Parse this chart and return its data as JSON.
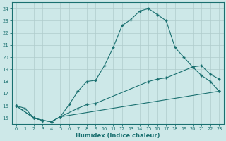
{
  "xlabel": "Humidex (Indice chaleur)",
  "bg_color": "#cde8e8",
  "grid_color": "#b0cccc",
  "line_color": "#1a7070",
  "xlim": [
    -0.5,
    23.5
  ],
  "ylim": [
    14.5,
    24.5
  ],
  "xticks": [
    0,
    1,
    2,
    3,
    4,
    5,
    6,
    7,
    8,
    9,
    10,
    11,
    12,
    13,
    14,
    15,
    16,
    17,
    18,
    19,
    20,
    21,
    22,
    23
  ],
  "yticks": [
    15,
    16,
    17,
    18,
    19,
    20,
    21,
    22,
    23,
    24
  ],
  "line1_x": [
    0,
    1,
    2,
    3,
    4,
    5,
    6,
    7,
    8,
    9,
    10,
    11,
    12,
    13,
    14,
    15,
    16,
    17,
    18,
    19,
    20,
    21,
    22,
    23
  ],
  "line1_y": [
    16.0,
    15.8,
    15.0,
    14.8,
    14.7,
    15.1,
    16.1,
    17.2,
    18.0,
    18.1,
    19.3,
    20.8,
    22.6,
    23.1,
    23.8,
    24.0,
    23.5,
    23.0,
    20.8,
    20.0,
    19.2,
    18.5,
    18.0,
    17.2
  ],
  "line2_x": [
    0,
    2,
    3,
    4,
    5,
    7,
    8,
    9,
    15,
    16,
    17,
    20,
    21,
    22,
    23
  ],
  "line2_y": [
    16.0,
    15.0,
    14.8,
    14.7,
    15.1,
    15.8,
    16.1,
    16.2,
    18.0,
    18.2,
    18.3,
    19.2,
    19.3,
    18.6,
    18.2
  ],
  "line3_x": [
    0,
    2,
    3,
    4,
    5,
    23
  ],
  "line3_y": [
    16.0,
    15.0,
    14.8,
    14.7,
    15.1,
    17.2
  ]
}
